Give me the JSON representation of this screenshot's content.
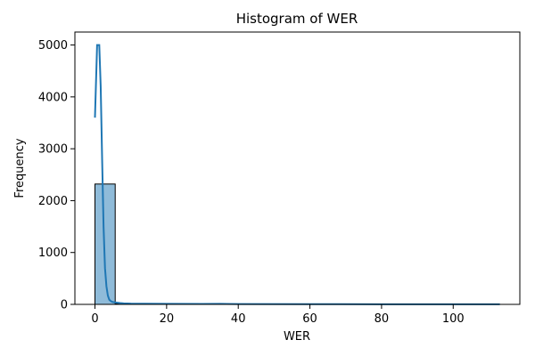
{
  "chart_data": {
    "type": "bar",
    "title": "Histogram of WER",
    "xlabel": "WER",
    "ylabel": "Frequency",
    "xlim": [
      -5.6,
      118.6
    ],
    "ylim": [
      0,
      5250
    ],
    "xticks": [
      0,
      20,
      40,
      60,
      80,
      100
    ],
    "yticks": [
      0,
      1000,
      2000,
      3000,
      4000,
      5000
    ],
    "bin_edges": [
      0,
      5.65,
      11.3,
      16.95,
      22.6,
      28.25,
      33.9,
      39.55,
      45.2,
      50.85,
      56.5,
      62.15,
      67.8,
      73.45,
      79.1,
      84.75,
      90.4,
      96.05,
      101.7,
      107.35,
      113.0
    ],
    "counts": [
      2320,
      12,
      6,
      3,
      2,
      2,
      2,
      1,
      1,
      1,
      1,
      1,
      1,
      1,
      1,
      1,
      0,
      1,
      1,
      1
    ],
    "bar_color": "#1f77b4",
    "bar_alpha": 0.5,
    "kde_color": "#1f77b4",
    "kde": {
      "x": [
        0,
        0.6,
        1.2,
        1.6,
        2.0,
        2.4,
        2.8,
        3.2,
        3.6,
        4.0,
        4.5,
        5.0,
        6.0,
        7.0,
        8.0,
        10.0,
        14.0,
        20.0,
        30.0,
        35.0,
        40.0,
        60.0,
        80.0,
        100.0,
        113.0
      ],
      "y": [
        3600,
        5000,
        5000,
        4200,
        2800,
        1500,
        700,
        350,
        170,
        90,
        60,
        45,
        35,
        25,
        20,
        15,
        12,
        10,
        8,
        10,
        6,
        4,
        3,
        3,
        3
      ]
    }
  }
}
